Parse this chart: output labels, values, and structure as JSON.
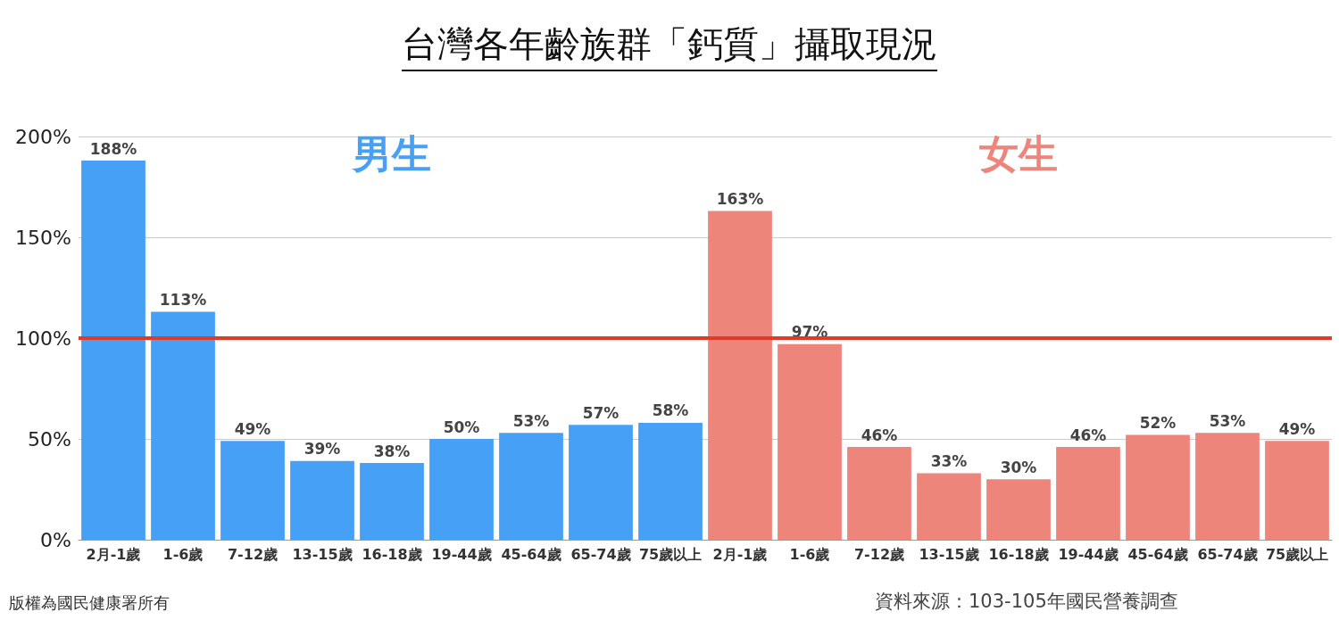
{
  "chart_data": {
    "type": "bar",
    "title": "台灣各年齡族群「鈣質」攝取現況",
    "categories": [
      "2月-1歲",
      "1-6歲",
      "7-12歲",
      "13-15歲",
      "16-18歲",
      "19-44歲",
      "45-64歲",
      "65-74歲",
      "75歲以上",
      "2月-1歲",
      "1-6歲",
      "7-12歲",
      "13-15歲",
      "16-18歲",
      "19-44歲",
      "45-64歲",
      "65-74歲",
      "75歲以上"
    ],
    "series": [
      {
        "name": "男生",
        "color": "#46a0f5",
        "values": [
          188,
          113,
          49,
          39,
          38,
          50,
          53,
          57,
          58,
          null,
          null,
          null,
          null,
          null,
          null,
          null,
          null,
          null
        ],
        "value_labels": [
          "188%",
          "113%",
          "49%",
          "39%",
          "38%",
          "50%",
          "53%",
          "57%",
          "58%",
          null,
          null,
          null,
          null,
          null,
          null,
          null,
          null,
          null
        ]
      },
      {
        "name": "女生",
        "color": "#ee857a",
        "values": [
          null,
          null,
          null,
          null,
          null,
          null,
          null,
          null,
          null,
          163,
          97,
          46,
          33,
          30,
          46,
          52,
          53,
          49
        ],
        "value_labels": [
          null,
          null,
          null,
          null,
          null,
          null,
          null,
          null,
          null,
          "163%",
          "97%",
          "46%",
          "33%",
          "30%",
          "46%",
          "52%",
          "53%",
          "49%"
        ]
      }
    ],
    "ylim": [
      0,
      200
    ],
    "yticks": [
      {
        "value": 0,
        "label": "0%"
      },
      {
        "value": 50,
        "label": "50%"
      },
      {
        "value": 100,
        "label": "100%"
      },
      {
        "value": 150,
        "label": "150%"
      },
      {
        "value": 200,
        "label": "200%"
      }
    ],
    "grid": "y",
    "legend": false,
    "ref_lines": [
      {
        "axis": "y",
        "value": 100,
        "color": "#e03a2a"
      }
    ],
    "annotations": [
      "版權為國民健康署所有",
      "資料來源：103-105年國民營養調查"
    ]
  }
}
